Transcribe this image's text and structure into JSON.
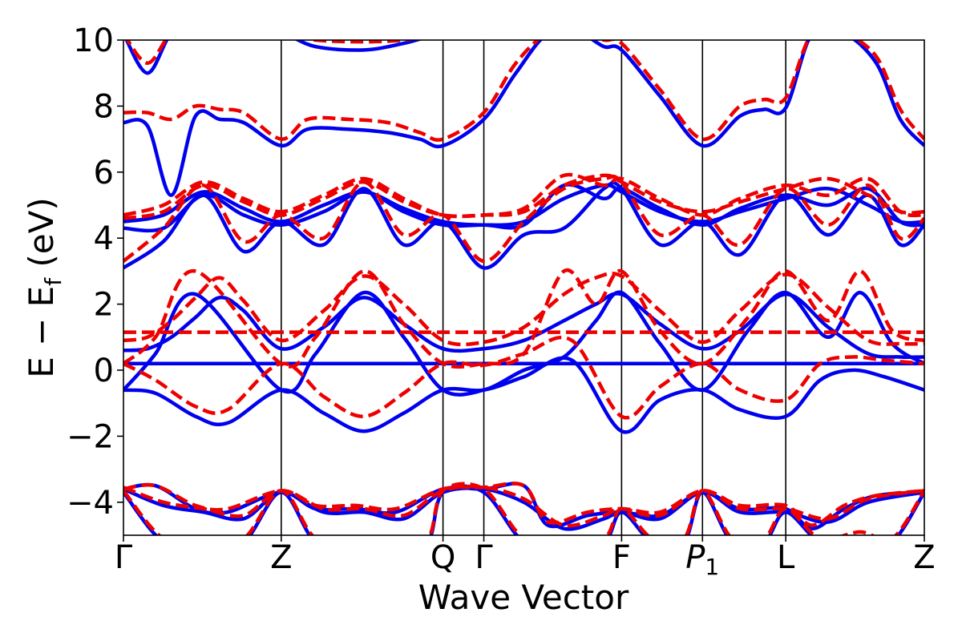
{
  "chart_data": {
    "type": "line",
    "xlabel": "Wave Vector",
    "ylabel": "E − E",
    "ylabel_sub": "f",
    "ylabel_unit": " (eV)",
    "ylim": [
      -5,
      10
    ],
    "xlim": [
      0,
      10
    ],
    "yticks": [
      "10",
      "8",
      "6",
      "4",
      "2",
      "0",
      "−2",
      "−4"
    ],
    "ytick_values": [
      10,
      8,
      6,
      4,
      2,
      0,
      -2,
      -4
    ],
    "high_symmetry_points": [
      {
        "label": "Γ",
        "x": 0
      },
      {
        "label": "Z",
        "x": 1.97
      },
      {
        "label": "Q",
        "x": 3.99
      },
      {
        "label": "Γ",
        "x": 4.5
      },
      {
        "label": "F",
        "x": 6.22
      },
      {
        "label": "P",
        "sub": "1",
        "x": 7.23
      },
      {
        "label": "L",
        "x": 8.27
      },
      {
        "label": "Z",
        "x": 10
      }
    ],
    "grid": false,
    "legend": "none",
    "colors": {
      "solid": "#0000ee",
      "dashed": "#ee0000"
    },
    "series": [
      {
        "style": "solid",
        "x": [
          0,
          1,
          2,
          3,
          4,
          4.5,
          5.3,
          6.2,
          7.2,
          8.3,
          9,
          10
        ],
        "y": [
          0.2,
          0.2,
          0.2,
          0.2,
          0.2,
          0.2,
          0.2,
          0.2,
          0.2,
          0.2,
          0.2,
          0.2
        ]
      },
      {
        "style": "dashed",
        "x": [
          0,
          1,
          2,
          3,
          4,
          4.5,
          5.3,
          6.2,
          7.2,
          8.3,
          9,
          10
        ],
        "y": [
          1.15,
          1.15,
          1.15,
          1.15,
          1.15,
          1.15,
          1.15,
          1.15,
          1.15,
          1.15,
          1.15,
          1.15
        ]
      },
      {
        "style": "solid",
        "x": [
          0,
          0.3,
          0.6,
          0.9,
          1.2,
          1.5,
          1.97,
          2.5,
          3.0,
          3.5,
          3.99,
          4.5,
          5.0,
          5.5,
          5.9,
          6.22,
          6.7,
          7.23,
          7.7,
          8.27,
          8.8,
          9.3,
          9.7,
          10
        ],
        "y": [
          0.6,
          0.65,
          1.0,
          1.6,
          2.2,
          1.8,
          0.65,
          1.3,
          2.2,
          1.4,
          0.65,
          0.65,
          0.9,
          1.5,
          2.0,
          2.3,
          1.4,
          0.65,
          1.2,
          2.3,
          1.3,
          0.5,
          0.4,
          0.4
        ]
      },
      {
        "style": "solid",
        "x": [
          0,
          0.4,
          0.9,
          1.3,
          1.97,
          2.5,
          3.0,
          3.5,
          3.99,
          4.5,
          5.0,
          5.6,
          6.22,
          6.7,
          7.23,
          7.7,
          8.27,
          8.7,
          9.1,
          9.5,
          10
        ],
        "y": [
          -0.6,
          -0.7,
          -1.4,
          -1.6,
          -0.6,
          -1.3,
          -1.85,
          -1.3,
          -0.6,
          -0.6,
          -0.2,
          0.3,
          -1.85,
          -0.9,
          -0.6,
          -1.2,
          -1.4,
          -0.3,
          0.0,
          -0.2,
          -0.6
        ]
      },
      {
        "style": "solid",
        "x": [
          0,
          0.4,
          0.9,
          1.97,
          2.4,
          3.0,
          3.5,
          3.99,
          4.5,
          5.0,
          5.5,
          5.9,
          6.22,
          6.7,
          7.23,
          7.8,
          8.27,
          8.8,
          9.2,
          9.6,
          10
        ],
        "y": [
          -0.6,
          0.5,
          2.3,
          -0.6,
          0.5,
          2.35,
          1.0,
          -0.6,
          -0.6,
          0.0,
          0.4,
          1.5,
          2.35,
          0.8,
          -0.6,
          1.2,
          2.35,
          1.0,
          2.35,
          0.8,
          0.2
        ]
      },
      {
        "style": "dashed",
        "x": [
          0,
          0.3,
          0.6,
          0.9,
          1.2,
          1.5,
          1.97,
          2.5,
          3.0,
          3.5,
          3.99,
          4.5,
          5.0,
          5.5,
          5.9,
          6.22,
          6.7,
          7.23,
          7.7,
          8.27,
          8.8,
          9.3,
          9.7,
          10
        ],
        "y": [
          0.9,
          1.0,
          1.5,
          2.2,
          2.8,
          2.1,
          0.9,
          1.8,
          2.85,
          2.0,
          0.9,
          0.85,
          1.3,
          2.3,
          2.8,
          2.85,
          1.8,
          0.85,
          1.8,
          2.9,
          1.9,
          0.9,
          0.8,
          0.8
        ]
      },
      {
        "style": "dashed",
        "x": [
          0,
          0.4,
          0.9,
          1.3,
          1.97,
          2.5,
          3.0,
          3.5,
          3.99,
          4.5,
          5.0,
          5.6,
          6.22,
          6.7,
          7.23,
          7.7,
          8.27,
          8.7,
          9.1,
          9.5,
          10
        ],
        "y": [
          0.2,
          -0.3,
          -1.1,
          -1.2,
          0.2,
          -0.8,
          -1.4,
          -0.7,
          0.2,
          0.15,
          0.5,
          0.9,
          -1.4,
          -0.5,
          0.2,
          -0.6,
          -0.9,
          0.2,
          0.4,
          0.3,
          0.2
        ]
      },
      {
        "style": "dashed",
        "x": [
          0,
          0.4,
          0.9,
          1.97,
          2.4,
          3.0,
          3.5,
          3.99,
          4.5,
          5.0,
          5.5,
          5.9,
          6.22,
          6.7,
          7.23,
          7.8,
          8.27,
          8.8,
          9.2,
          9.6,
          10
        ],
        "y": [
          0.2,
          1.0,
          3.0,
          0.2,
          1.0,
          3.0,
          1.4,
          0.2,
          0.2,
          0.5,
          3.0,
          2.0,
          3.0,
          1.2,
          0.2,
          1.6,
          3.0,
          1.5,
          3.0,
          1.2,
          0.9
        ]
      },
      {
        "style": "solid",
        "x": [
          0,
          0.5,
          1.0,
          1.5,
          1.97,
          2.5,
          3.0,
          3.5,
          3.99,
          4.5,
          5.0,
          5.5,
          6.0,
          6.22,
          6.7,
          7.23,
          7.7,
          8.27,
          8.8,
          9.3,
          9.7,
          10
        ],
        "y": [
          3.1,
          3.9,
          5.3,
          3.6,
          4.5,
          3.8,
          5.5,
          3.8,
          4.5,
          3.1,
          4.1,
          4.3,
          5.5,
          5.5,
          3.8,
          4.5,
          3.5,
          5.3,
          4.1,
          5.3,
          3.8,
          4.4
        ]
      },
      {
        "style": "solid",
        "x": [
          0,
          0.5,
          1.0,
          1.5,
          1.97,
          2.5,
          3.0,
          3.5,
          3.99,
          4.5,
          5.0,
          5.5,
          6.0,
          6.22,
          6.7,
          7.23,
          7.7,
          8.27,
          8.8,
          9.3,
          9.7,
          10
        ],
        "y": [
          4.3,
          4.3,
          5.3,
          4.7,
          4.4,
          4.8,
          5.4,
          4.8,
          4.4,
          4.4,
          4.4,
          5.6,
          5.2,
          5.5,
          4.9,
          4.4,
          4.9,
          5.3,
          5.0,
          5.5,
          4.5,
          4.4
        ]
      },
      {
        "style": "solid",
        "x": [
          0,
          0.5,
          1.0,
          1.5,
          1.97,
          2.5,
          3.0,
          3.5,
          3.99,
          4.5,
          5.0,
          5.5,
          6.0,
          6.22,
          6.7,
          7.23,
          7.7,
          8.27,
          8.8,
          9.3,
          9.7,
          10
        ],
        "y": [
          4.5,
          4.7,
          5.4,
          4.9,
          4.5,
          5.0,
          5.4,
          4.9,
          4.5,
          4.4,
          4.5,
          5.2,
          5.6,
          5.4,
          4.8,
          4.5,
          4.8,
          5.2,
          5.5,
          5.0,
          4.5,
          4.5
        ]
      },
      {
        "style": "solid",
        "x": [
          0,
          0.3,
          0.6,
          0.9,
          1.2,
          1.5,
          1.97,
          2.3,
          2.8,
          3.3,
          3.7,
          3.99,
          4.5,
          4.9,
          5.3,
          5.7,
          6.0,
          6.22,
          6.7,
          7.23,
          7.7,
          8.0,
          8.27,
          8.6,
          9.0,
          9.4,
          9.7,
          10
        ],
        "y": [
          7.5,
          7.4,
          5.3,
          7.7,
          7.6,
          7.5,
          6.8,
          7.3,
          7.3,
          7.2,
          7.0,
          6.8,
          7.6,
          9.0,
          10.2,
          10.2,
          9.8,
          9.7,
          8.3,
          6.8,
          7.7,
          7.9,
          7.95,
          10.2,
          10.2,
          9.3,
          7.6,
          6.8
        ]
      },
      {
        "style": "dashed",
        "x": [
          0,
          0.5,
          1.0,
          1.5,
          1.97,
          2.5,
          3.0,
          3.5,
          3.99,
          4.5,
          5.0,
          5.5,
          6.0,
          6.22,
          6.7,
          7.23,
          7.7,
          8.27,
          8.8,
          9.3,
          9.7,
          10
        ],
        "y": [
          3.3,
          4.3,
          5.6,
          3.9,
          4.7,
          4.0,
          5.7,
          4.1,
          4.7,
          3.3,
          4.5,
          5.5,
          5.8,
          5.7,
          4.1,
          4.7,
          3.8,
          5.5,
          4.4,
          5.6,
          4.0,
          4.6
        ]
      },
      {
        "style": "dashed",
        "x": [
          0,
          0.5,
          1.0,
          1.5,
          1.97,
          2.5,
          3.0,
          3.5,
          3.99,
          4.5,
          5.0,
          5.5,
          6.0,
          6.22,
          6.7,
          7.23,
          7.7,
          8.27,
          8.8,
          9.3,
          9.7,
          10
        ],
        "y": [
          4.6,
          4.8,
          5.6,
          5.1,
          4.7,
          5.2,
          5.7,
          5.1,
          4.7,
          4.7,
          4.9,
          5.9,
          5.6,
          5.8,
          5.2,
          4.7,
          5.2,
          5.6,
          5.3,
          5.8,
          4.8,
          4.7
        ]
      },
      {
        "style": "dashed",
        "x": [
          0,
          0.5,
          1.0,
          1.5,
          1.97,
          2.5,
          3.0,
          3.5,
          3.99,
          4.5,
          5.0,
          5.5,
          6.0,
          6.22,
          6.7,
          7.23,
          7.7,
          8.27,
          8.8,
          9.3,
          9.7,
          10
        ],
        "y": [
          4.7,
          5.0,
          5.7,
          5.2,
          4.8,
          5.3,
          5.8,
          5.2,
          4.7,
          4.7,
          4.8,
          5.6,
          5.9,
          5.7,
          5.1,
          4.8,
          5.1,
          5.5,
          5.8,
          5.3,
          4.8,
          4.8
        ]
      },
      {
        "style": "dashed",
        "x": [
          0,
          0.3,
          0.6,
          0.9,
          1.2,
          1.5,
          1.97,
          2.3,
          2.8,
          3.3,
          3.7,
          3.99,
          4.5,
          4.9,
          5.3,
          5.7,
          6.0,
          6.22,
          6.7,
          7.23,
          7.7,
          8.0,
          8.27,
          8.6,
          9.0,
          9.4,
          9.7,
          10
        ],
        "y": [
          7.8,
          7.8,
          7.6,
          8.0,
          7.9,
          7.8,
          7.0,
          7.6,
          7.6,
          7.5,
          7.2,
          7.0,
          7.8,
          9.3,
          10.2,
          10.2,
          10.0,
          9.9,
          8.5,
          7.0,
          8.0,
          8.2,
          8.25,
          10.2,
          10.2,
          9.5,
          7.9,
          7.0
        ]
      },
      {
        "style": "solid",
        "x": [
          0,
          0.3,
          0.6,
          0.9,
          1.2,
          1.5,
          1.97,
          2.4,
          3.0,
          3.5,
          3.99,
          4.5,
          5.2,
          6.0,
          6.22,
          7.23,
          8.27,
          9.3,
          10
        ],
        "y": [
          10.2,
          9.0,
          10.2,
          10.2,
          10.2,
          10.2,
          10.2,
          9.8,
          9.7,
          9.9,
          10.2,
          10.2,
          10.2,
          10.2,
          10.2,
          10.2,
          10.2,
          10.2,
          10.2
        ]
      },
      {
        "style": "dashed",
        "x": [
          0,
          0.3,
          0.6,
          0.9,
          1.2,
          1.5,
          1.97,
          2.4,
          3.0,
          3.5,
          3.99,
          4.5,
          5.2,
          6.0,
          6.22,
          7.23,
          8.27,
          9.3,
          10
        ],
        "y": [
          10.2,
          9.3,
          10.2,
          10.2,
          10.2,
          10.2,
          10.2,
          10.0,
          9.95,
          10.0,
          10.2,
          10.2,
          10.2,
          10.2,
          10.2,
          10.2,
          10.2,
          10.2,
          10.2
        ]
      },
      {
        "style": "solid",
        "x": [
          0,
          0.4,
          0.9,
          1.3,
          1.97,
          2.4,
          2.9,
          3.4,
          3.99,
          4.5,
          5.0,
          5.3,
          5.8,
          6.22,
          6.7,
          7.23,
          7.7,
          8.27,
          8.6,
          9.0,
          9.4,
          10
        ],
        "y": [
          -3.6,
          -3.5,
          -4.2,
          -4.3,
          -3.7,
          -4.2,
          -4.2,
          -4.3,
          -3.6,
          -3.6,
          -3.5,
          -4.7,
          -4.4,
          -4.3,
          -4.4,
          -3.7,
          -4.2,
          -4.2,
          -4.8,
          -4.2,
          -3.8,
          -3.7
        ]
      },
      {
        "style": "solid",
        "x": [
          0,
          0.5,
          1.0,
          1.5,
          1.97,
          2.5,
          3.0,
          3.5,
          3.99,
          4.5,
          5.0,
          5.5,
          6.0,
          6.22,
          6.7,
          7.23,
          7.7,
          8.27,
          8.8,
          9.3,
          10
        ],
        "y": [
          -3.6,
          -4.1,
          -4.3,
          -4.5,
          -3.7,
          -4.3,
          -4.3,
          -4.5,
          -3.7,
          -3.6,
          -4.0,
          -4.8,
          -4.5,
          -4.3,
          -4.5,
          -3.7,
          -4.3,
          -4.3,
          -4.6,
          -4.0,
          -3.7
        ]
      },
      {
        "style": "solid",
        "x": [
          0,
          0.5,
          1.0,
          1.5,
          1.97,
          2.4,
          2.9,
          3.4,
          3.8,
          3.99,
          4.5,
          5.0,
          5.5,
          6.0,
          6.22,
          6.6,
          7.0,
          7.23,
          7.6,
          8.0,
          8.27,
          8.7,
          9.2,
          9.6,
          10
        ],
        "y": [
          -3.7,
          -5.2,
          -5.2,
          -5.2,
          -3.7,
          -5.2,
          -5.2,
          -5.2,
          -5.2,
          -3.7,
          -3.7,
          -5.2,
          -5.2,
          -5.2,
          -4.3,
          -5.2,
          -5.2,
          -3.7,
          -5.2,
          -5.2,
          -4.3,
          -5.2,
          -5.2,
          -5.2,
          -3.7
        ]
      },
      {
        "style": "dashed",
        "x": [
          0,
          0.4,
          0.9,
          1.3,
          1.97,
          2.4,
          2.9,
          3.4,
          3.99,
          4.5,
          5.0,
          5.3,
          5.8,
          6.22,
          6.7,
          7.23,
          7.7,
          8.27,
          8.6,
          9.0,
          9.4,
          10
        ],
        "y": [
          -3.6,
          -3.5,
          -4.1,
          -4.2,
          -3.65,
          -4.1,
          -4.1,
          -4.2,
          -3.6,
          -3.55,
          -3.5,
          -4.6,
          -4.3,
          -4.2,
          -4.3,
          -3.65,
          -4.1,
          -4.1,
          -4.7,
          -4.1,
          -3.8,
          -3.65
        ]
      },
      {
        "style": "dashed",
        "x": [
          0,
          0.5,
          1.0,
          1.5,
          1.97,
          2.5,
          3.0,
          3.5,
          3.99,
          4.5,
          5.0,
          5.5,
          6.0,
          6.22,
          6.7,
          7.23,
          7.7,
          8.27,
          8.8,
          9.3,
          10
        ],
        "y": [
          -3.55,
          -4.0,
          -4.2,
          -4.4,
          -3.65,
          -4.2,
          -4.2,
          -4.4,
          -3.65,
          -3.55,
          -3.9,
          -4.7,
          -4.4,
          -4.2,
          -4.4,
          -3.65,
          -4.2,
          -4.2,
          -4.5,
          -3.9,
          -3.65
        ]
      },
      {
        "style": "dashed",
        "x": [
          0,
          0.5,
          1.0,
          1.5,
          1.97,
          2.4,
          2.9,
          3.4,
          3.8,
          3.99,
          4.5,
          5.0,
          5.5,
          6.0,
          6.22,
          6.6,
          7.0,
          7.23,
          7.6,
          8.0,
          8.27,
          8.7,
          9.2,
          9.6,
          10
        ],
        "y": [
          -3.65,
          -5.1,
          -5.1,
          -5.1,
          -3.65,
          -5.1,
          -5.1,
          -5.1,
          -5.1,
          -3.65,
          -3.6,
          -5.1,
          -5.1,
          -5.1,
          -4.2,
          -5.1,
          -5.1,
          -3.65,
          -5.1,
          -5.1,
          -4.2,
          -5.1,
          -4.9,
          -5.1,
          -3.65
        ]
      }
    ]
  }
}
